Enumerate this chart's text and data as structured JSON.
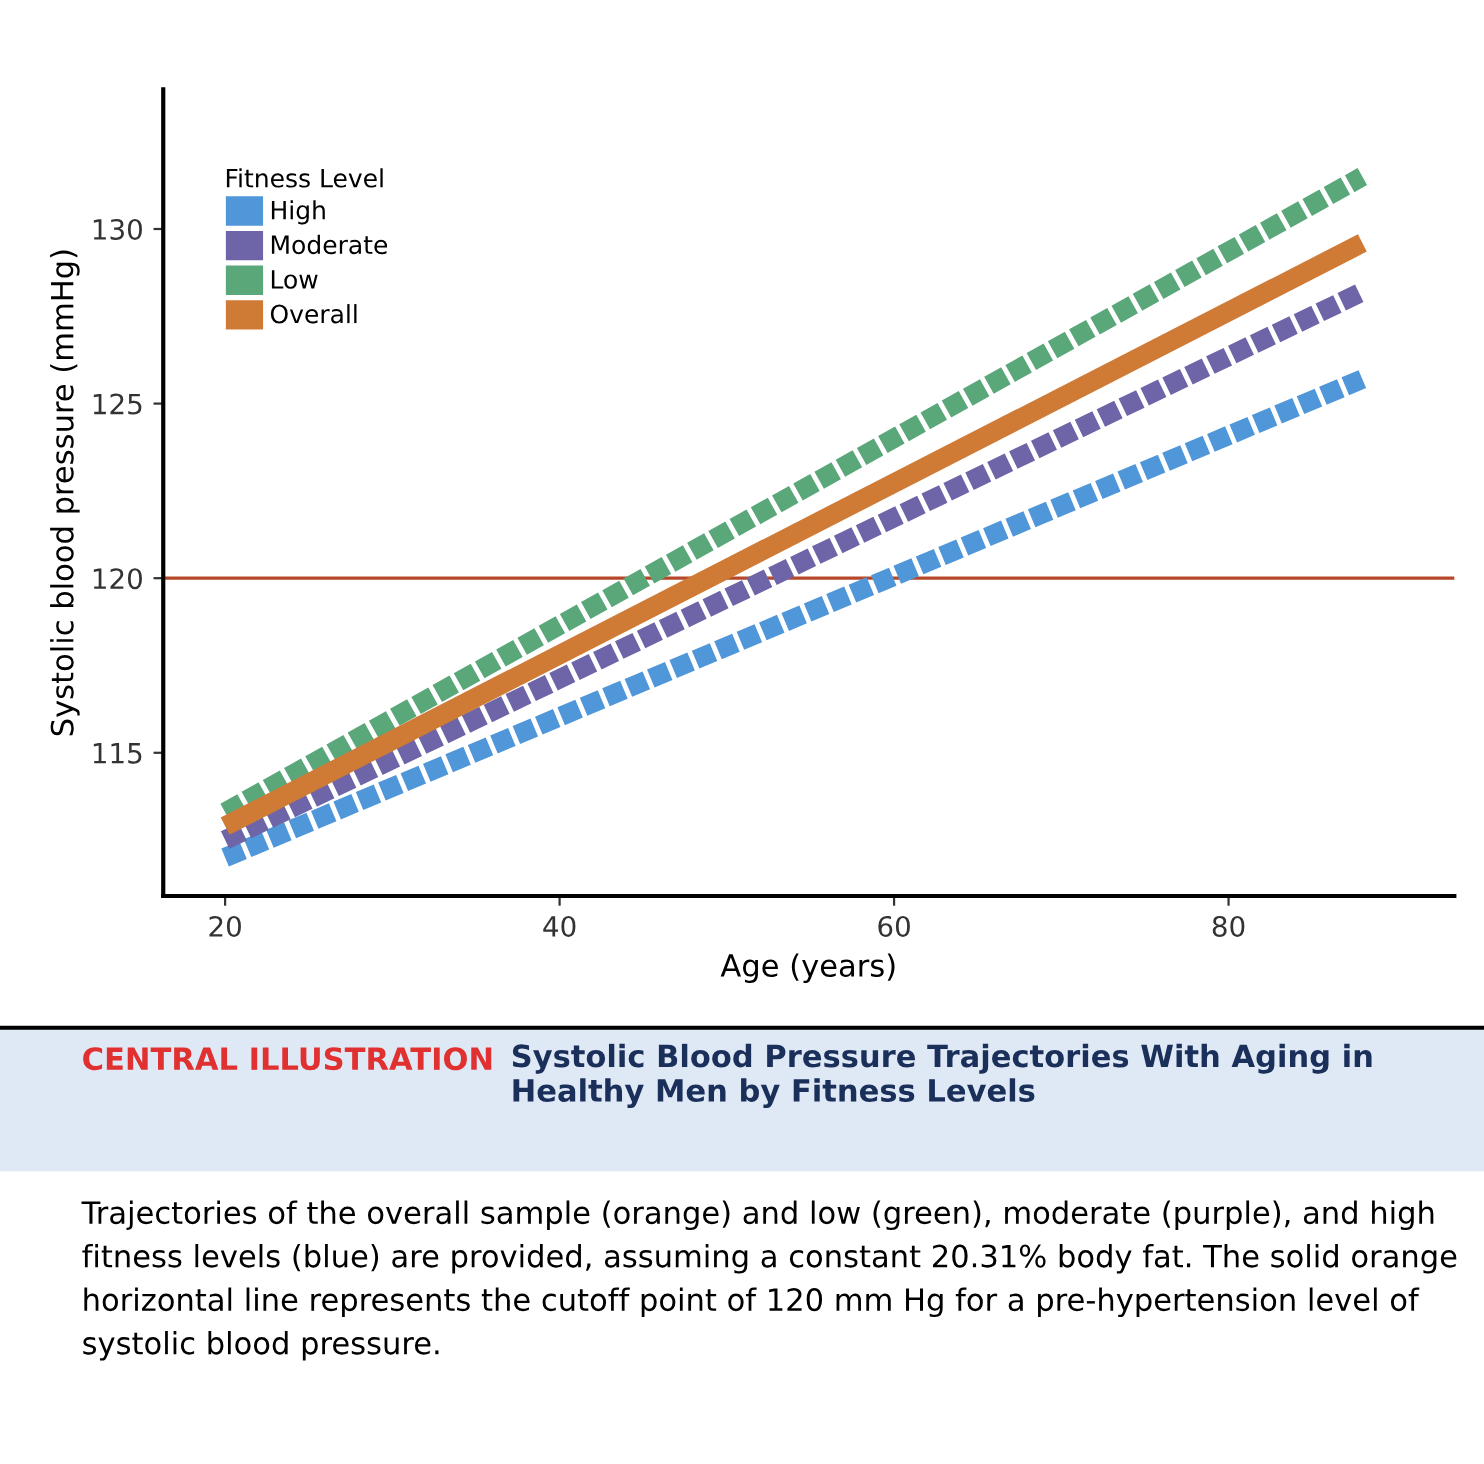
{
  "chart_data": {
    "type": "line",
    "title": "Systolic Blood Pressure Trajectories With Aging in Healthy Men by Fitness Levels",
    "xlabel": "Age (years)",
    "ylabel": "Systolic blood pressure (mmHg)",
    "legend_title": "Fitness Level",
    "x": [
      20,
      88
    ],
    "series": [
      {
        "name": "High",
        "color": "#4f97d9",
        "values": [
          112.0,
          125.7
        ],
        "line_style": "dashed"
      },
      {
        "name": "Moderate",
        "color": "#6e64a8",
        "values": [
          112.5,
          128.2
        ],
        "line_style": "dashed"
      },
      {
        "name": "Low",
        "color": "#5aa77a",
        "values": [
          113.3,
          131.5
        ],
        "line_style": "dashed"
      },
      {
        "name": "Overall",
        "color": "#cf7a35",
        "values": [
          112.9,
          129.6
        ],
        "line_style": "solid"
      }
    ],
    "xlim": [
      16.3,
      93.5
    ],
    "ylim": [
      110.9,
      134
    ],
    "xticks": [
      20,
      40,
      60,
      80
    ],
    "yticks": [
      115,
      120,
      125,
      130
    ],
    "ref_lines": [
      {
        "axis": "y",
        "value": 120,
        "color": "#b5482a"
      }
    ],
    "grid": false,
    "legend": "top left",
    "marker": "none",
    "annotations": [
      "CENTRAL ILLUSTRATION",
      "Trajectories of the overall sample (orange) and low (green), moderate (purple), and high fitness levels (blue) are provided, assuming a constant 20.31% body fat. The solid orange horizontal line represents the cutoff point of 120 mm Hg for a pre-hypertension level of systolic blood pressure."
    ]
  }
}
